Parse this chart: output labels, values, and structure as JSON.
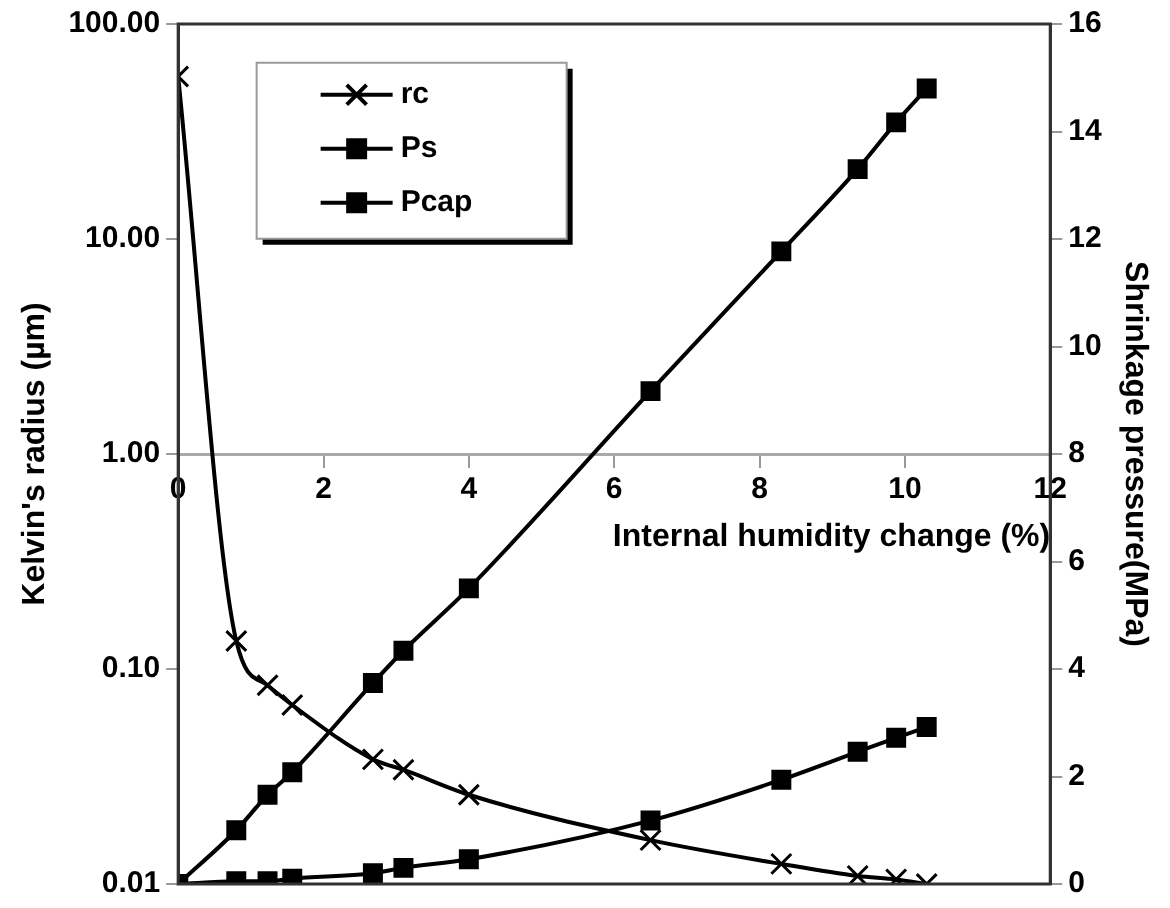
{
  "chart_data": {
    "type": "line",
    "xlabel": "Internal humidity change (%)",
    "ylabel": "Kelvin's radius (µm)",
    "y2label": "Shrinkage pressure(MPa)",
    "x": [
      0,
      0.8,
      1.23,
      1.57,
      2.68,
      3.1,
      4.0,
      6.5,
      8.3,
      9.35,
      9.88,
      10.3
    ],
    "series": [
      {
        "name": "rc",
        "color": "#000000",
        "marker": "cross",
        "values": [
          57,
          0.135,
          0.084,
          0.068,
          0.038,
          0.034,
          0.026,
          0.016,
          0.0124,
          0.0109,
          0.0105,
          0.01
        ]
      },
      {
        "name": "Ps",
        "color": "#000000",
        "marker": "square",
        "axis": "y2",
        "values": [
          0,
          0.05,
          0.05,
          0.1,
          0.2,
          0.3,
          0.46,
          1.18,
          1.94,
          2.46,
          2.72,
          2.92
        ]
      },
      {
        "name": "Pcap",
        "color": "#000000",
        "marker": "square",
        "axis": "y2",
        "values": [
          0,
          1.0,
          1.66,
          2.08,
          3.74,
          4.34,
          5.5,
          9.17,
          11.77,
          13.3,
          14.17,
          14.8
        ]
      }
    ],
    "xlim": [
      0,
      12
    ],
    "xticks": [
      0,
      2,
      4,
      6,
      8,
      10,
      12
    ],
    "ylim": [
      0.01,
      100
    ],
    "yticks": [
      {
        "value": 0.01,
        "label": "0.01"
      },
      {
        "value": 0.1,
        "label": "0.10"
      },
      {
        "value": 1,
        "label": "1.00"
      },
      {
        "value": 10,
        "label": "10.00"
      },
      {
        "value": 100,
        "label": "100.00"
      }
    ],
    "y2lim": [
      0,
      16
    ],
    "y2ticks": [
      0,
      2,
      4,
      6,
      8,
      10,
      12,
      14,
      16
    ],
    "log": "y",
    "grid": false,
    "legend": "top left"
  }
}
